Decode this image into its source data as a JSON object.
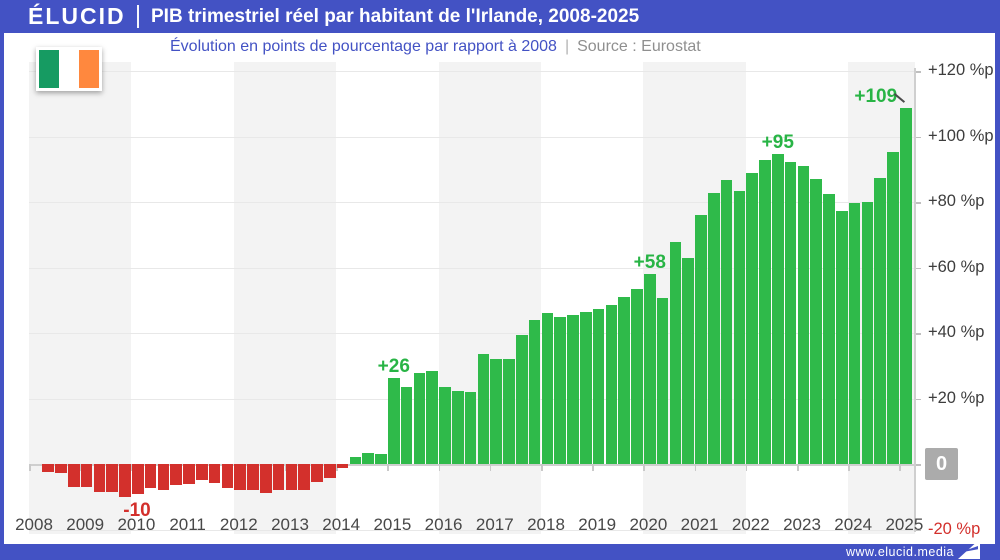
{
  "header": {
    "logo": "ÉLUCID",
    "title": "PIB trimestriel réel par habitant de l'Irlande, 2008-2025"
  },
  "subtitle": {
    "text": "Évolution en points de pourcentage par rapport à 2008",
    "separator": "|",
    "source": "Source : Eurostat"
  },
  "footer": {
    "url": "www.elucid.media"
  },
  "icons": {
    "flag": "ireland-flag",
    "footer_logo": "elucid-flag"
  },
  "colors": {
    "brand_blue": "#4352c4",
    "positive_bar": "#2fba4a",
    "negative_bar": "#d3302c",
    "positive_text": "#28b445",
    "negative_text": "#d3302c",
    "axis_text": "#3d3d3d",
    "zero_badge_bg": "#ababab",
    "flag_green": "#169b62",
    "flag_white": "#ffffff",
    "flag_orange": "#ff883e"
  },
  "chart_data": {
    "type": "bar",
    "title": "PIB trimestriel réel par habitant de l'Irlande, 2008-2025",
    "subtitle": "Évolution en points de pourcentage par rapport à 2008",
    "source": "Eurostat",
    "unit": "%p",
    "frequency": "quarterly",
    "start_period": "2008-Q1",
    "end_period": "2025-Q1",
    "ylim": [
      -20,
      120
    ],
    "grid": true,
    "x_labels": [
      "2008",
      "2009",
      "2010",
      "2011",
      "2012",
      "2013",
      "2014",
      "2015",
      "2016",
      "2017",
      "2018",
      "2019",
      "2020",
      "2021",
      "2022",
      "2023",
      "2024",
      "2025"
    ],
    "yticks": [
      {
        "value": 120,
        "label": "+120 %p"
      },
      {
        "value": 100,
        "label": "+100 %p"
      },
      {
        "value": 80,
        "label": "+80 %p"
      },
      {
        "value": 60,
        "label": "+60 %p"
      },
      {
        "value": 40,
        "label": "+40 %p"
      },
      {
        "value": 20,
        "label": "+20 %p"
      },
      {
        "value": 0,
        "label": "0"
      },
      {
        "value": -20,
        "label": "-20 %p"
      }
    ],
    "values": [
      0,
      -2.5,
      -2.7,
      -6.8,
      -6.8,
      -8.4,
      -8.4,
      -10,
      -9.1,
      -7.3,
      -7.9,
      -6.2,
      -5.9,
      -4.9,
      -5.6,
      -7.3,
      -7.8,
      -8,
      -8.7,
      -7.8,
      -8,
      -7.8,
      -5.3,
      -4.3,
      -1.2,
      2.3,
      3.5,
      3.3,
      26.5,
      23.7,
      27.8,
      28.5,
      23.6,
      22.5,
      22.2,
      33.8,
      32.1,
      32.1,
      39.5,
      44.1,
      46.2,
      44.9,
      45.7,
      46.5,
      47.5,
      48.7,
      51,
      53.4,
      58,
      50.9,
      68,
      63,
      76,
      82.8,
      86.9,
      83.6,
      88.9,
      93,
      94.8,
      92.3,
      91,
      87.1,
      82.5,
      77.3,
      79.7,
      80.1,
      87.5,
      95.4,
      108.9
    ],
    "annotations": [
      {
        "text": "-10",
        "index": 7,
        "position": "below",
        "dx": 12,
        "pointer": false
      },
      {
        "text": "+26",
        "index": 28,
        "position": "above",
        "dx": 0,
        "pointer": false
      },
      {
        "text": "+58",
        "index": 48,
        "position": "above",
        "dx": 0,
        "pointer": false
      },
      {
        "text": "+95",
        "index": 58,
        "position": "above",
        "dx": 0,
        "pointer": false
      },
      {
        "text": "+109",
        "index": 68,
        "position": "above",
        "dx": -30,
        "pointer": true
      }
    ],
    "stripe_band_start_years": [
      2008,
      2012,
      2016,
      2020,
      2024
    ]
  }
}
